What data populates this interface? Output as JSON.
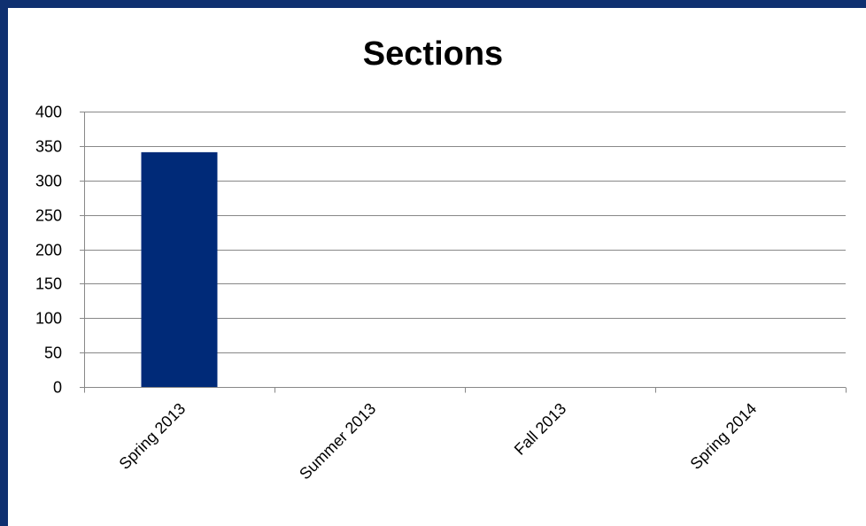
{
  "chart_data": {
    "type": "bar",
    "title": "Sections",
    "categories": [
      "Spring 2013",
      "Summer 2013",
      "Fall 2013",
      "Spring 2014"
    ],
    "values": [
      341,
      0,
      0,
      0
    ],
    "ylim": [
      0,
      400
    ],
    "yticks": [
      0,
      50,
      100,
      150,
      200,
      250,
      300,
      350,
      400
    ],
    "grid": true,
    "legend": "none",
    "colors": {
      "bar": "#002a78",
      "frame": "#0f3070",
      "grid": "#888888"
    }
  }
}
